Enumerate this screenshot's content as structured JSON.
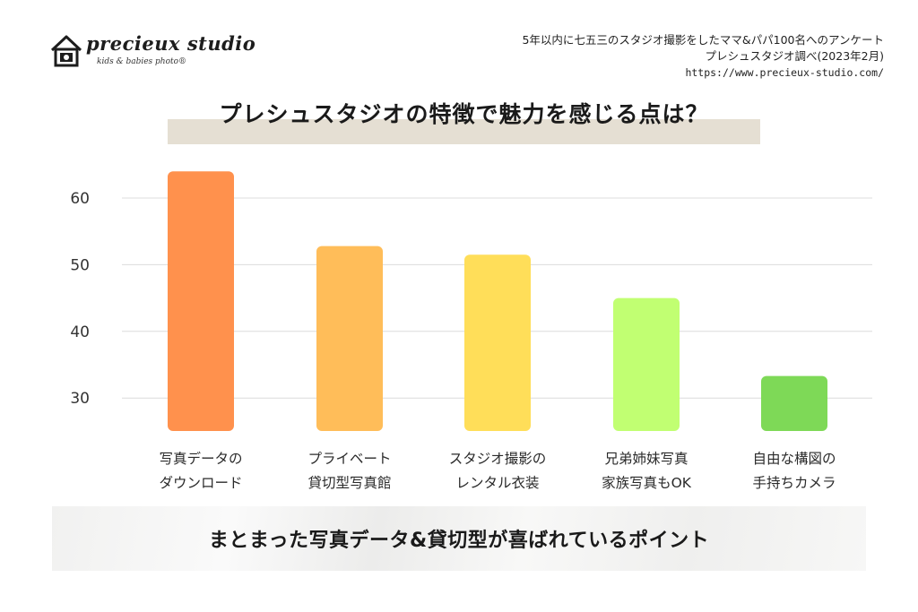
{
  "logo": {
    "name": "precieux studio",
    "tagline": "kids & babies photo®"
  },
  "source": {
    "line1": "5年以内に七五三のスタジオ撮影をしたママ&パパ100名へのアンケート",
    "line2": "プレシュスタジオ調べ(2023年2月)",
    "url": "https://www.precieux-studio.com/"
  },
  "footer": {
    "text": "まとまった写真データ&貸切型が喜ばれているポイント"
  },
  "chart_data": {
    "type": "bar",
    "title": "プレシュスタジオの特徴で魅力を感じる点は？",
    "xlabel": "",
    "ylabel": "",
    "categories": [
      [
        "写真データの",
        "ダウンロード"
      ],
      [
        "プライベート",
        "貸切型写真館"
      ],
      [
        "スタジオ撮影の",
        "レンタル衣装"
      ],
      [
        "兄弟姉妹写真",
        "家族写真もOK"
      ],
      [
        "自由な構図の",
        "手持ちカメラ"
      ]
    ],
    "values": [
      64,
      52.8,
      51.5,
      45,
      33.3
    ],
    "colors": [
      "#ff914d",
      "#ffbd59",
      "#ffde59",
      "#c1ff72",
      "#7ed957"
    ],
    "yticks": [
      30,
      40,
      50,
      60
    ],
    "ylim": [
      25,
      66
    ],
    "grid": true,
    "legend": "none"
  }
}
